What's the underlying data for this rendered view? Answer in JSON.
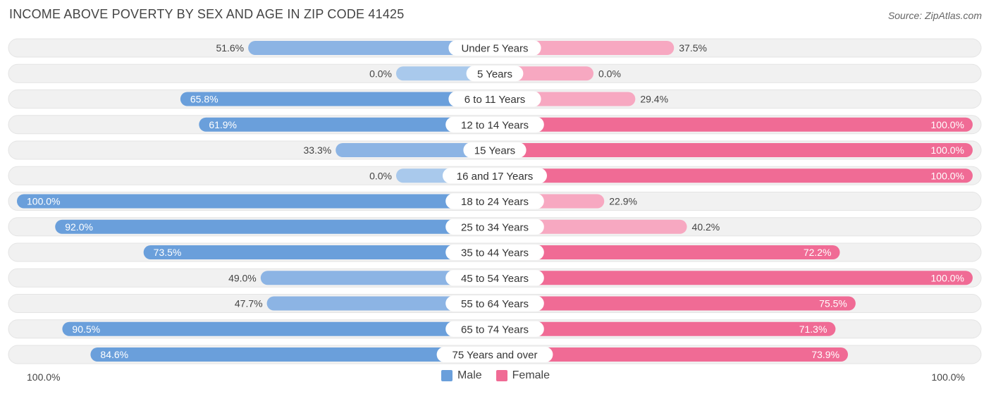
{
  "title": "INCOME ABOVE POVERTY BY SEX AND AGE IN ZIP CODE 41425",
  "source": "Source: ZipAtlas.com",
  "colors": {
    "male_dark": "#6a9fdb",
    "male_light": "#a9c9ec",
    "female_dark": "#f06b95",
    "female_light": "#f7a8c1",
    "track": "#f1f1f1"
  },
  "legend": {
    "male_label": "Male",
    "female_label": "Female"
  },
  "axis": {
    "left_label": "100.0%",
    "right_label": "100.0%"
  },
  "chart_data": {
    "type": "bar",
    "orientation": "horizontal-diverging",
    "xlim": [
      0,
      100
    ],
    "categories": [
      "Under 5 Years",
      "5 Years",
      "6 to 11 Years",
      "12 to 14 Years",
      "15 Years",
      "16 and 17 Years",
      "18 to 24 Years",
      "25 to 34 Years",
      "35 to 44 Years",
      "45 to 54 Years",
      "55 to 64 Years",
      "65 to 74 Years",
      "75 Years and over"
    ],
    "series": [
      {
        "name": "Male",
        "values": [
          51.6,
          0.0,
          65.8,
          61.9,
          33.3,
          0.0,
          100.0,
          92.0,
          73.5,
          49.0,
          47.7,
          90.5,
          84.6
        ],
        "labels": [
          "51.6%",
          "0.0%",
          "65.8%",
          "61.9%",
          "33.3%",
          "0.0%",
          "100.0%",
          "92.0%",
          "73.5%",
          "49.0%",
          "47.7%",
          "90.5%",
          "84.6%"
        ]
      },
      {
        "name": "Female",
        "values": [
          37.5,
          0.0,
          29.4,
          100.0,
          100.0,
          100.0,
          22.9,
          40.2,
          72.2,
          100.0,
          75.5,
          71.3,
          73.9
        ],
        "labels": [
          "37.5%",
          "0.0%",
          "29.4%",
          "100.0%",
          "100.0%",
          "100.0%",
          "22.9%",
          "40.2%",
          "72.2%",
          "100.0%",
          "75.5%",
          "71.3%",
          "73.9%"
        ]
      }
    ],
    "legend_position": "bottom-center"
  }
}
